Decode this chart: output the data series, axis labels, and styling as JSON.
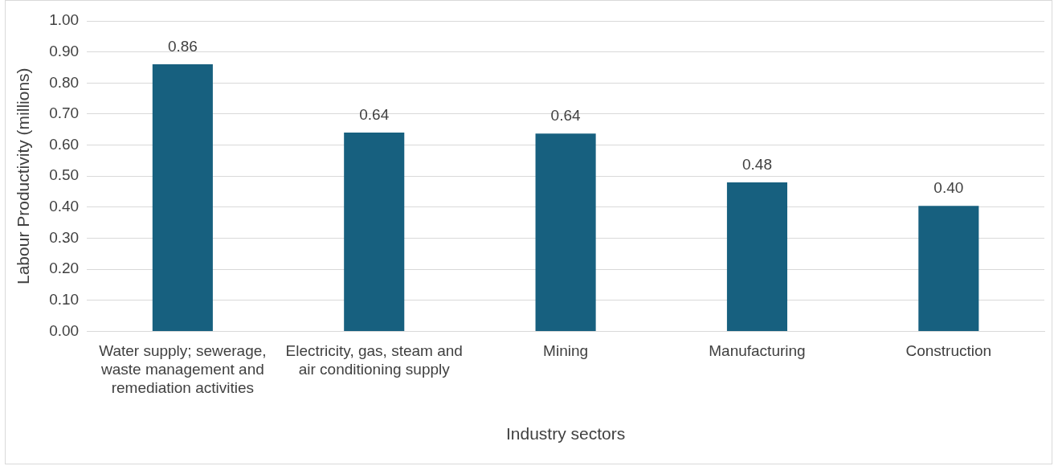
{
  "chart_data": {
    "type": "bar",
    "xlabel": "Industry sectors",
    "ylabel": "Labour Productivity (millions)",
    "categories": [
      "Water supply; sewerage, waste management and remediation activities",
      "Electricity, gas, steam and air conditioning supply",
      "Mining",
      "Manufacturing",
      "Construction"
    ],
    "values": [
      0.86,
      0.64,
      0.637,
      0.48,
      0.404
    ],
    "value_labels": [
      "0.86",
      "0.64",
      "0.64",
      "0.48",
      "0.40"
    ],
    "color": "#17607f",
    "ylim": [
      0,
      1
    ],
    "yticks": [
      {
        "value": 0,
        "label": "0.00"
      },
      {
        "value": 0.1,
        "label": "0.10"
      },
      {
        "value": 0.2,
        "label": "0.20"
      },
      {
        "value": 0.3,
        "label": "0.30"
      },
      {
        "value": 0.4,
        "label": "0.40"
      },
      {
        "value": 0.5,
        "label": "0.50"
      },
      {
        "value": 0.6,
        "label": "0.60"
      },
      {
        "value": 0.7,
        "label": "0.70"
      },
      {
        "value": 0.8,
        "label": "0.80"
      },
      {
        "value": 0.9,
        "label": "0.90"
      },
      {
        "value": 1,
        "label": "1.00"
      }
    ],
    "grid": "y",
    "legend": false
  }
}
